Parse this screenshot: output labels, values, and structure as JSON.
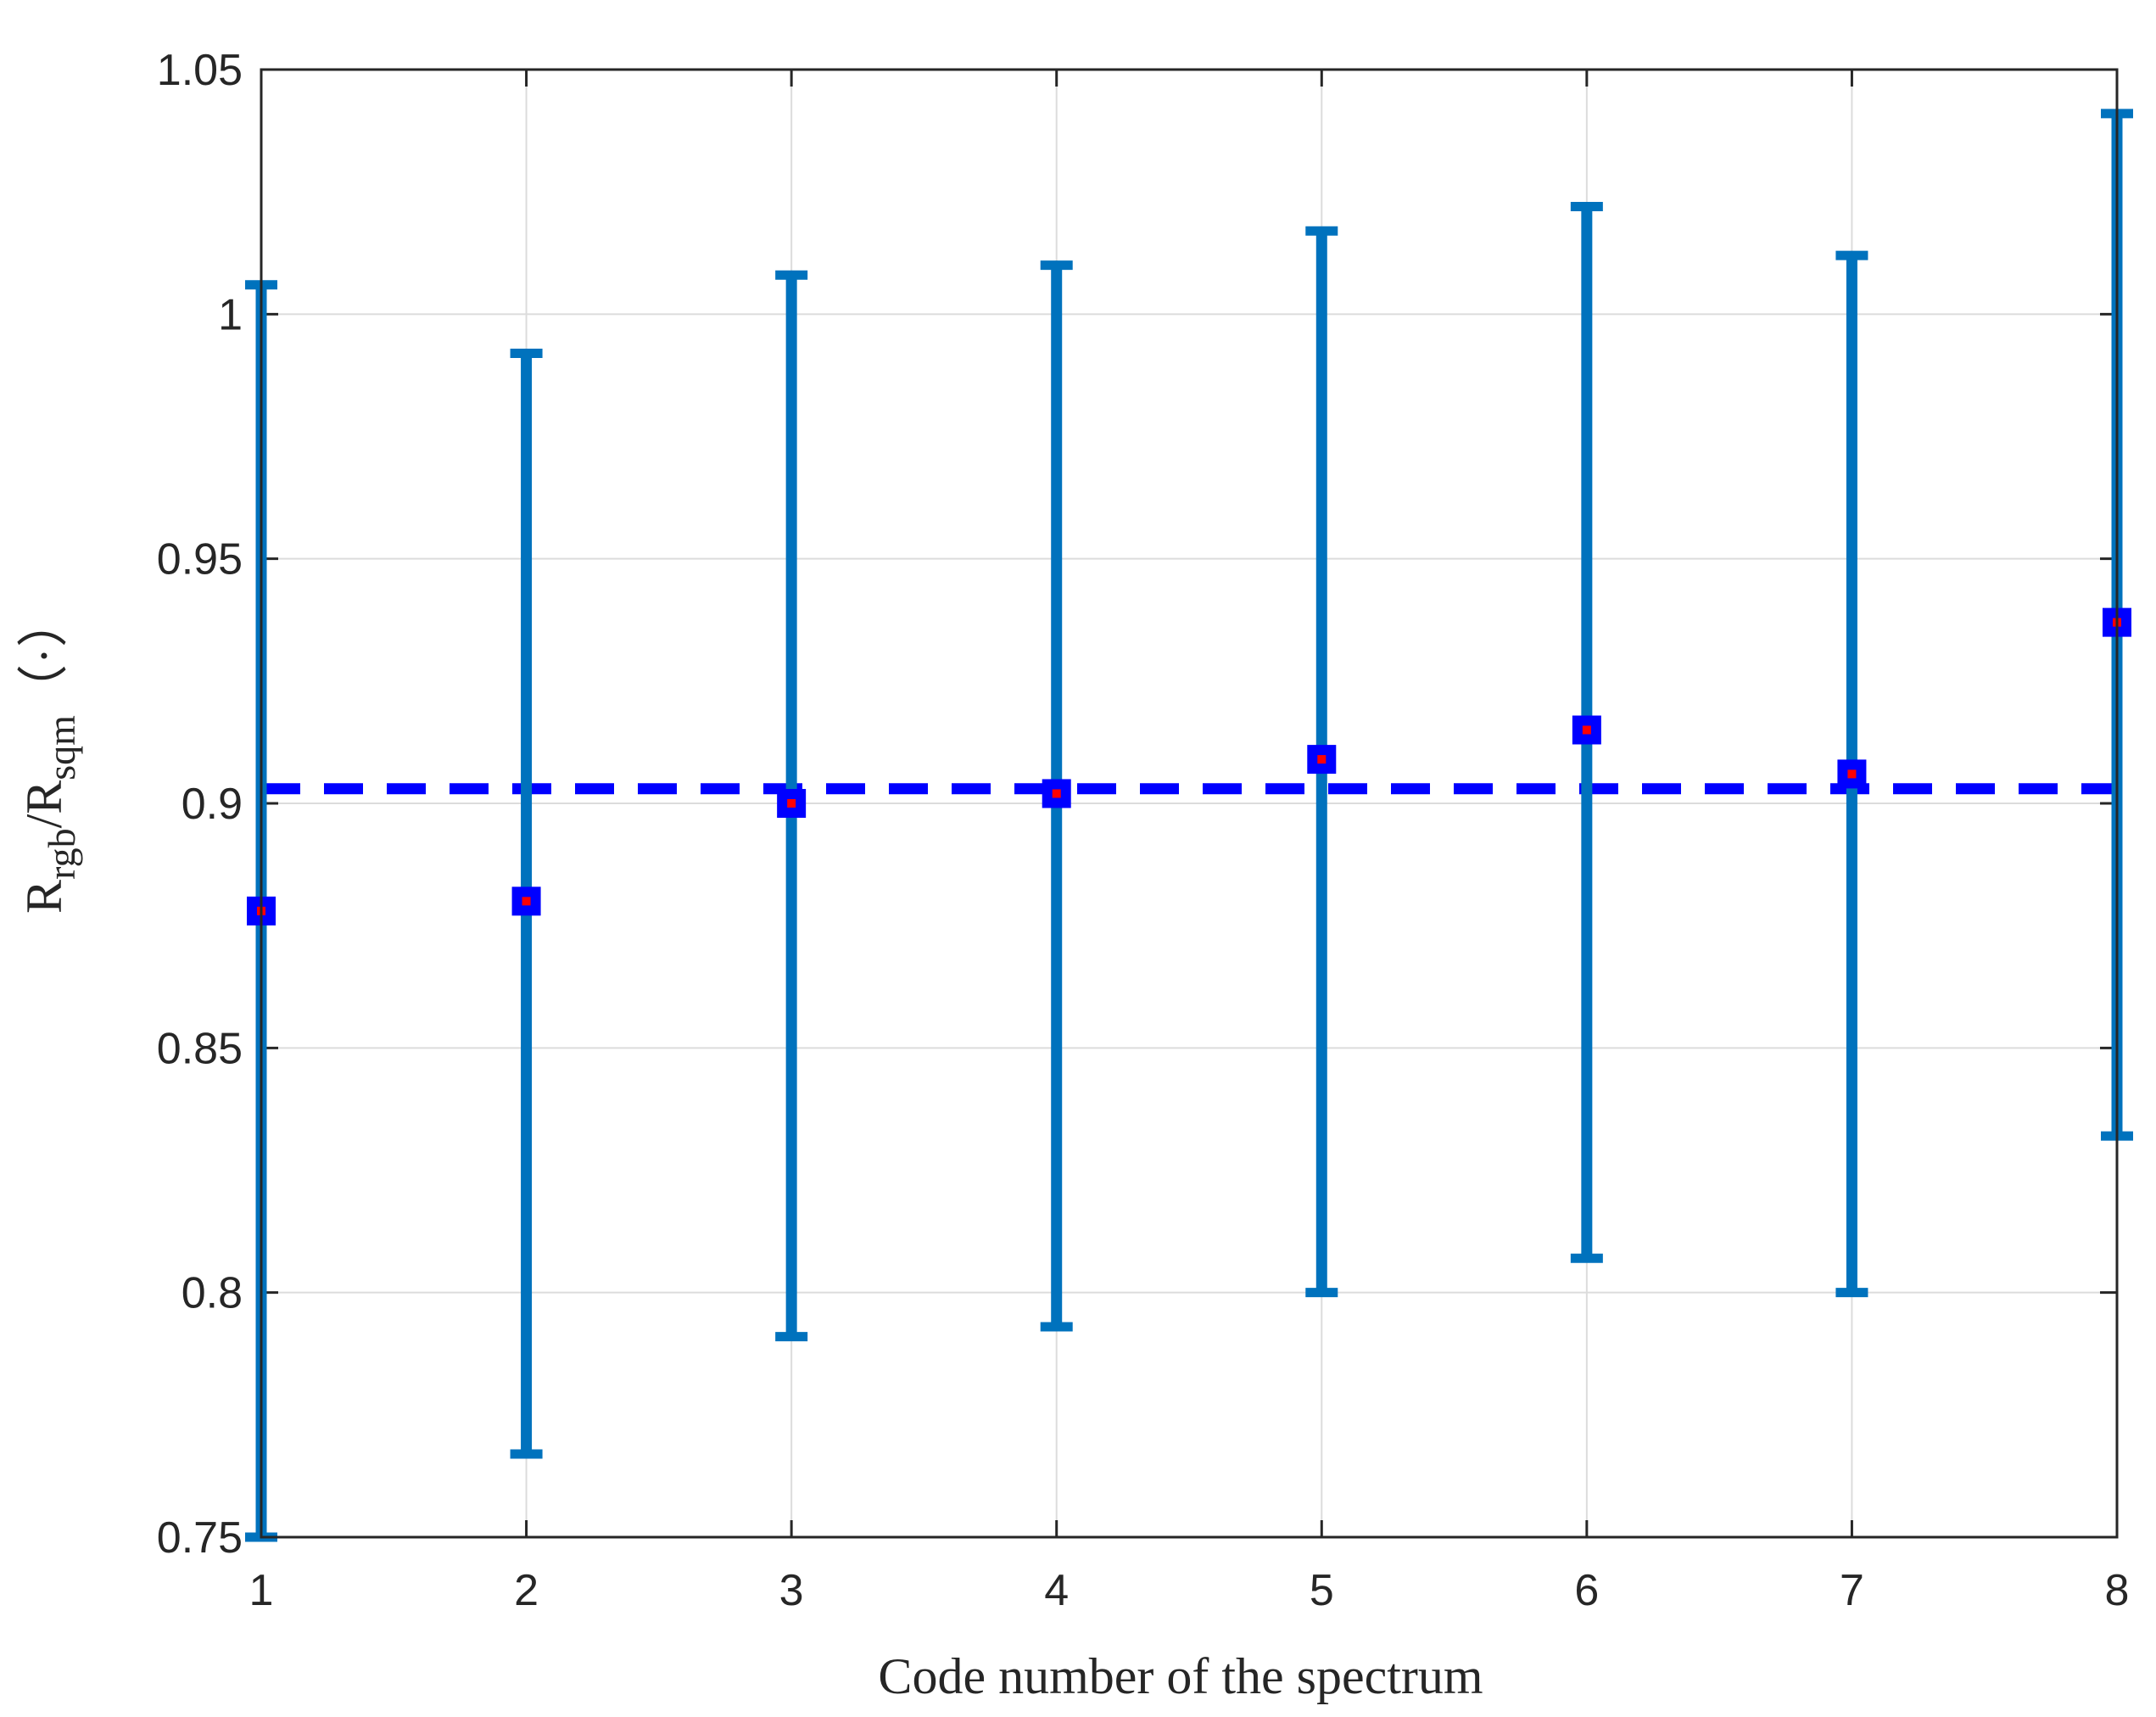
{
  "chart_data": {
    "type": "errorbar",
    "title": "",
    "xlabel": "Code number of the spectrum",
    "ylabel": {
      "parts": [
        {
          "text": "R",
          "sub": false
        },
        {
          "text": "rgb",
          "sub": true
        },
        {
          "text": "/R",
          "sub": false
        },
        {
          "text": "sqm",
          "sub": true
        },
        {
          "text": "（·）",
          "sub": false
        }
      ]
    },
    "xlim": [
      1,
      8
    ],
    "ylim": [
      0.75,
      1.05
    ],
    "xticks": [
      "1",
      "2",
      "3",
      "4",
      "5",
      "6",
      "7",
      "8"
    ],
    "yticks": [
      "0.75",
      "0.8",
      "0.85",
      "0.9",
      "0.95",
      "1",
      "1.05"
    ],
    "grid": true,
    "series": [
      {
        "name": "R_rgb/R_sqm",
        "x": [
          1,
          2,
          3,
          4,
          5,
          6,
          7,
          8
        ],
        "y": [
          0.878,
          0.88,
          0.9,
          0.902,
          0.909,
          0.915,
          0.906,
          0.937
        ],
        "lower": [
          0.75,
          0.767,
          0.791,
          0.793,
          0.8,
          0.807,
          0.8,
          0.832
        ],
        "upper": [
          1.006,
          0.992,
          1.008,
          1.01,
          1.017,
          1.022,
          1.012,
          1.041
        ],
        "bar_color": "#0072BD",
        "marker_color": "#0000FF",
        "marker_center_color": "#FF0000"
      }
    ],
    "mean_line": {
      "y": 0.903,
      "color": "#0000FF",
      "style": "dashed"
    }
  }
}
